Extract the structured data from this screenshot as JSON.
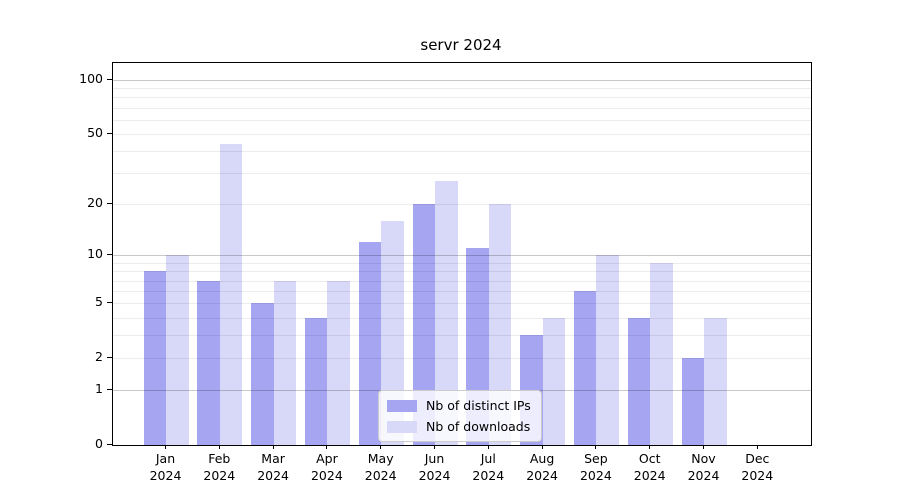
{
  "title": "servr 2024",
  "chart_data": {
    "type": "bar",
    "title": "servr 2024",
    "categories": [
      "Jan",
      "Feb",
      "Mar",
      "Apr",
      "May",
      "Jun",
      "Jul",
      "Aug",
      "Sep",
      "Oct",
      "Nov",
      "Dec"
    ],
    "year_label": "2024",
    "series": [
      {
        "name": "Nb of distinct IPs",
        "color": "#a5a5f2",
        "values": [
          8,
          7,
          5,
          4,
          12,
          20,
          11,
          3,
          6,
          4,
          2,
          0
        ]
      },
      {
        "name": "Nb of downloads",
        "color": "#d8d8f8",
        "values": [
          10,
          44,
          7,
          7,
          16,
          27,
          20,
          4,
          10,
          9,
          4,
          0
        ]
      }
    ],
    "yscale": "log1p",
    "yticks": [
      0,
      1,
      2,
      5,
      10,
      20,
      50,
      100
    ],
    "ylim": [
      0,
      125
    ],
    "xlabel": "",
    "ylabel": "",
    "grid": "horizontal major at 1,10,100 and log minor lines, drawn over bars",
    "legend_position": "inside-bottom-center"
  }
}
